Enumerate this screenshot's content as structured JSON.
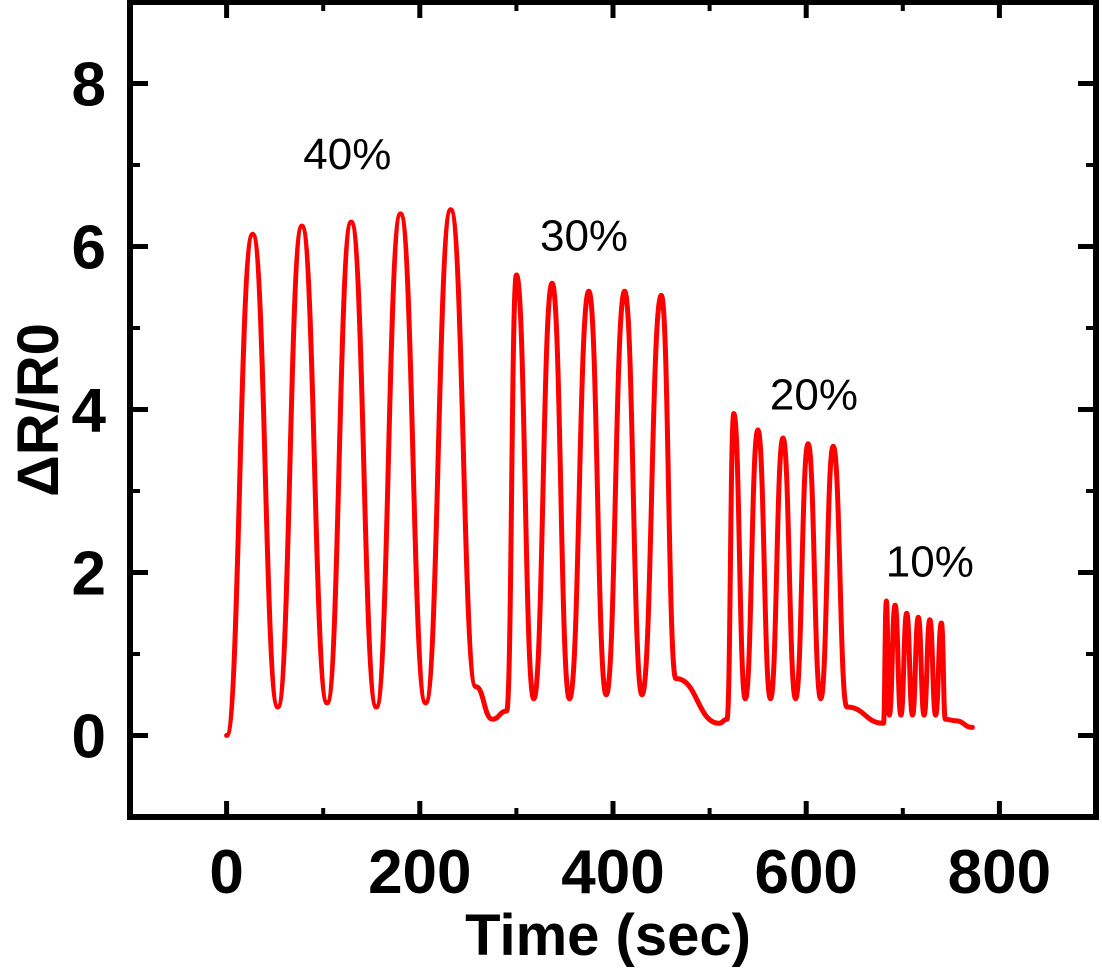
{
  "chart_data": {
    "type": "line",
    "xlabel": "Time (sec)",
    "ylabel": "ΔR/R0",
    "xlim": [
      -100,
      900
    ],
    "ylim": [
      -1,
      9
    ],
    "x_ticks": [
      0,
      200,
      400,
      600,
      800
    ],
    "x_tick_labels": [
      "0",
      "200",
      "400",
      "600",
      "800"
    ],
    "y_ticks": [
      0,
      2,
      4,
      6,
      8
    ],
    "y_tick_labels": [
      "0",
      "2",
      "4",
      "6",
      "8"
    ],
    "minor_x_ticks": [
      -100,
      100,
      300,
      500,
      700,
      900
    ],
    "minor_y_ticks": [
      -1,
      1,
      3,
      5,
      7,
      9
    ],
    "grid": false,
    "series": [
      {
        "name": "ΔR/R0",
        "color": "#ff0000",
        "x": [
          0,
          27,
          53,
          78,
          104,
          129,
          155,
          180,
          206,
          232,
          258,
          275,
          290,
          300,
          318,
          337,
          355,
          375,
          393,
          412,
          430,
          450,
          465,
          510,
          518,
          525,
          537,
          550,
          563,
          576,
          589,
          602,
          615,
          628,
          642,
          680,
          683,
          686,
          692,
          698,
          704,
          710,
          716,
          722,
          728,
          734,
          740,
          744,
          755,
          772
        ],
        "y": [
          0,
          6.15,
          0.35,
          6.25,
          0.4,
          6.3,
          0.35,
          6.4,
          0.4,
          6.45,
          0.6,
          0.2,
          0.3,
          5.65,
          0.45,
          5.55,
          0.45,
          5.45,
          0.5,
          5.45,
          0.5,
          5.4,
          0.7,
          0.15,
          0.2,
          3.95,
          0.45,
          3.75,
          0.45,
          3.65,
          0.45,
          3.58,
          0.45,
          3.55,
          0.35,
          0.15,
          1.65,
          0.25,
          1.6,
          0.25,
          1.5,
          0.25,
          1.45,
          0.25,
          1.42,
          0.25,
          1.38,
          0.2,
          0.18,
          0.1
        ]
      }
    ],
    "annotations": [
      {
        "text": "40%",
        "x": 125,
        "y": 6.95
      },
      {
        "text": "30%",
        "x": 370,
        "y": 5.95
      },
      {
        "text": "20%",
        "x": 608,
        "y": 4.0
      },
      {
        "text": "10%",
        "x": 728,
        "y": 1.95
      }
    ]
  }
}
